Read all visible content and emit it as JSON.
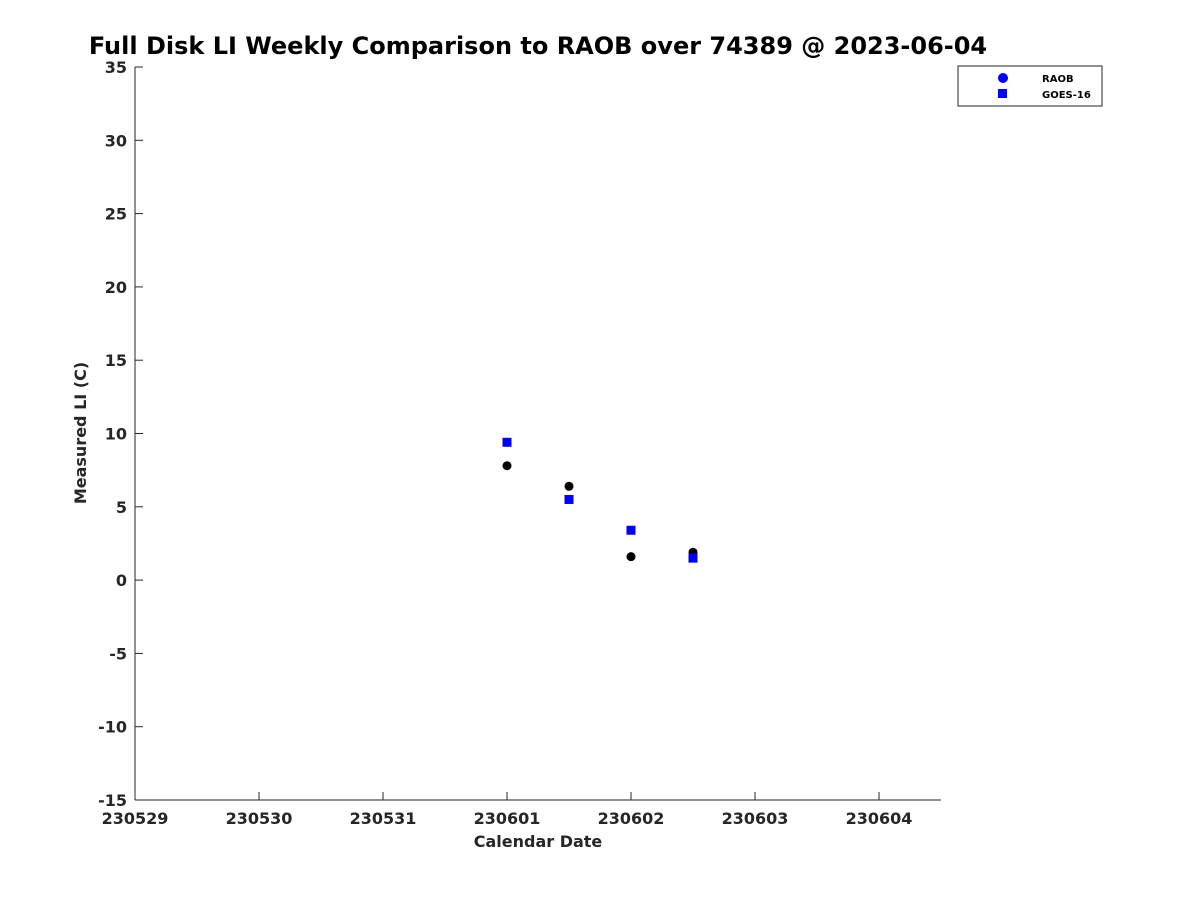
{
  "chart_data": {
    "type": "scatter",
    "title": "Full Disk LI Weekly Comparison to RAOB over 74389 @ 2023-06-04",
    "xlabel": "Calendar Date",
    "ylabel": "Measured LI (C)",
    "x_ticks": [
      "230529",
      "230530",
      "230531",
      "230601",
      "230602",
      "230603",
      "230604"
    ],
    "x_tick_values": [
      0,
      1,
      2,
      3,
      4,
      5,
      6
    ],
    "xlim": [
      0,
      6.5
    ],
    "y_ticks": [
      "35",
      "30",
      "25",
      "20",
      "15",
      "10",
      "5",
      "0",
      "-5",
      "-10",
      "-15"
    ],
    "ylim": [
      -15,
      35
    ],
    "grid": false,
    "legend_position": "top-right",
    "series": [
      {
        "name": "RAOB",
        "marker": "circle",
        "legend_color": "#0000ff",
        "color": "#000000",
        "x": [
          3.0,
          3.5,
          4.0,
          4.5
        ],
        "y": [
          7.8,
          6.4,
          1.6,
          1.9
        ]
      },
      {
        "name": "GOES-16",
        "marker": "square",
        "legend_color": "#0000ff",
        "color": "#0000ff",
        "x": [
          3.0,
          3.5,
          4.0,
          4.5
        ],
        "y": [
          9.4,
          5.5,
          3.4,
          1.5
        ]
      }
    ]
  }
}
